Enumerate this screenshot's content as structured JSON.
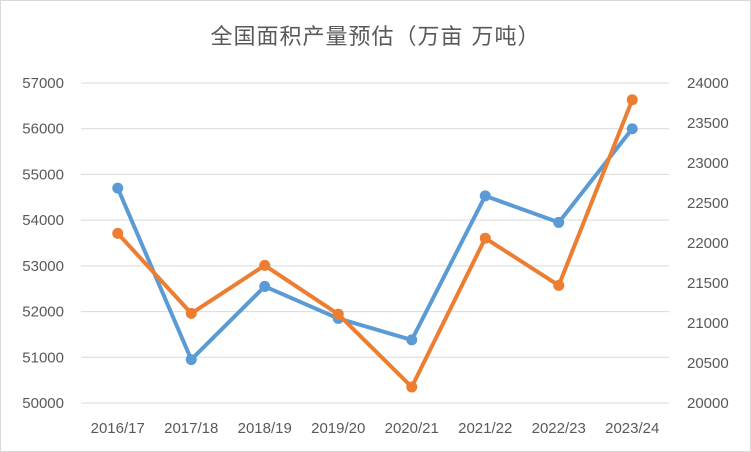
{
  "chart_data": {
    "type": "line",
    "title": "全国面积产量预估（万亩 万吨）",
    "categories": [
      "2016/17",
      "2017/18",
      "2018/19",
      "2019/20",
      "2020/21",
      "2021/22",
      "2022/23",
      "2023/24"
    ],
    "y_left": {
      "range": [
        50000,
        57000
      ],
      "ticks": [
        "50000",
        "51000",
        "52000",
        "53000",
        "54000",
        "55000",
        "56000",
        "57000"
      ]
    },
    "y_right": {
      "range": [
        20000,
        24000
      ],
      "ticks": [
        "20000",
        "20500",
        "21000",
        "21500",
        "22000",
        "22500",
        "23000",
        "23500",
        "24000"
      ]
    },
    "grid": true,
    "legend": "none",
    "series": [
      {
        "axis": "left",
        "color": "#5b9bd5",
        "values": [
          54700,
          50950,
          52550,
          51850,
          51380,
          54530,
          53950,
          56000
        ]
      },
      {
        "axis": "right",
        "color": "#ed7d31",
        "values": [
          22120,
          21120,
          21720,
          21110,
          20200,
          22060,
          21470,
          23790
        ]
      }
    ]
  }
}
